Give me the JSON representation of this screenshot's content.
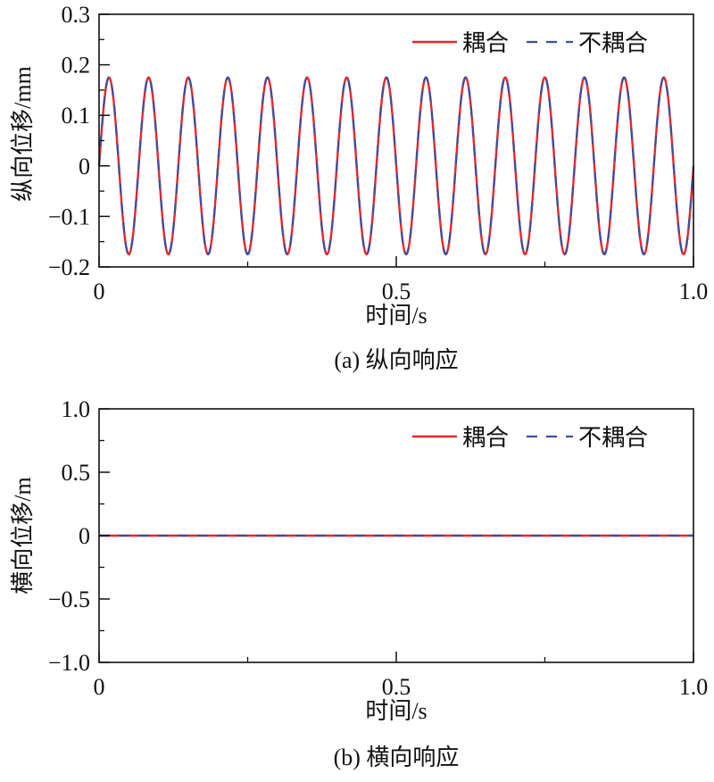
{
  "chart_data": [
    {
      "type": "line",
      "title": "(a) 纵向响应",
      "xlabel": "时间/s",
      "ylabel": "纵向位移/mm",
      "xlim": [
        0,
        1
      ],
      "ylim": [
        -0.2,
        0.3
      ],
      "xticks": [
        {
          "v": 0,
          "label": "0"
        },
        {
          "v": 0.5,
          "label": "0.5"
        },
        {
          "v": 1,
          "label": "1.0"
        }
      ],
      "yticks": [
        {
          "v": 0.3,
          "label": "0.3"
        },
        {
          "v": 0.2,
          "label": "0.2"
        },
        {
          "v": 0.1,
          "label": "0.1"
        },
        {
          "v": 0,
          "label": "0"
        },
        {
          "v": -0.1,
          "label": "−0.1"
        },
        {
          "v": -0.2,
          "label": "−0.2"
        }
      ],
      "legend": "top-right",
      "series": [
        {
          "name": "耦合",
          "color": "#e8262b",
          "style": "solid",
          "function": "0.175*sin(2*pi*15*t)",
          "amplitude": 0.175,
          "frequency_hz": 15
        },
        {
          "name": "不耦合",
          "color": "#3b4fa0",
          "style": "dashed",
          "function": "0.175*sin(2*pi*15*t)",
          "amplitude": 0.175,
          "frequency_hz": 15
        }
      ]
    },
    {
      "type": "line",
      "title": "(b) 横向响应",
      "xlabel": "时间/s",
      "ylabel": "横向位移/m",
      "xlim": [
        0,
        1
      ],
      "ylim": [
        -1,
        1
      ],
      "xticks": [
        {
          "v": 0,
          "label": "0"
        },
        {
          "v": 0.5,
          "label": "0.5"
        },
        {
          "v": 1,
          "label": "1.0"
        }
      ],
      "yticks": [
        {
          "v": 1,
          "label": "1.0"
        },
        {
          "v": 0.5,
          "label": "0.5"
        },
        {
          "v": 0,
          "label": "0"
        },
        {
          "v": -0.5,
          "label": "−0.5"
        },
        {
          "v": -1,
          "label": "−1.0"
        }
      ],
      "legend": "top-right",
      "series": [
        {
          "name": "耦合",
          "color": "#e8262b",
          "style": "solid",
          "x": [
            0,
            1
          ],
          "y": [
            0,
            0
          ]
        },
        {
          "name": "不耦合",
          "color": "#3b4fa0",
          "style": "dashed",
          "x": [
            0,
            1
          ],
          "y": [
            0,
            0
          ]
        }
      ]
    }
  ]
}
